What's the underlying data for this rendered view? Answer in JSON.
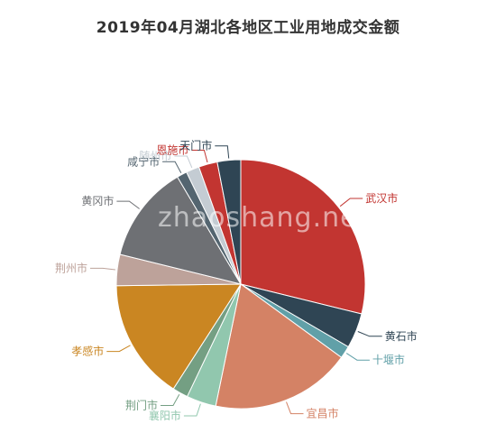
{
  "chart_data": {
    "type": "pie",
    "title": "2019年04月湖北各地区工业用地成交金额",
    "slices": [
      {
        "label": "武汉市",
        "value": 28.5,
        "color": "#c23531"
      },
      {
        "label": "黄石市",
        "value": 4.5,
        "color": "#2f4554"
      },
      {
        "label": "十堰市",
        "value": 1.6,
        "color": "#61a0a8"
      },
      {
        "label": "宜昌市",
        "value": 18.0,
        "color": "#d48265"
      },
      {
        "label": "襄阳市",
        "value": 3.8,
        "color": "#91c7ae"
      },
      {
        "label": "荆门市",
        "value": 2.0,
        "color": "#749f83"
      },
      {
        "label": "孝感市",
        "value": 15.5,
        "color": "#ca8622"
      },
      {
        "label": "荆州市",
        "value": 4.0,
        "color": "#bda29a"
      },
      {
        "label": "黄冈市",
        "value": 12.5,
        "color": "#6e7074"
      },
      {
        "label": "咸宁市",
        "value": 1.3,
        "color": "#546570"
      },
      {
        "label": "随州市",
        "value": 1.7,
        "color": "#c4ccd3"
      },
      {
        "label": "恩施市",
        "value": 2.4,
        "color": "#c23531"
      },
      {
        "label": "天门市",
        "value": 3.0,
        "color": "#2f4554"
      }
    ]
  },
  "watermark": "zhaoshang.net"
}
